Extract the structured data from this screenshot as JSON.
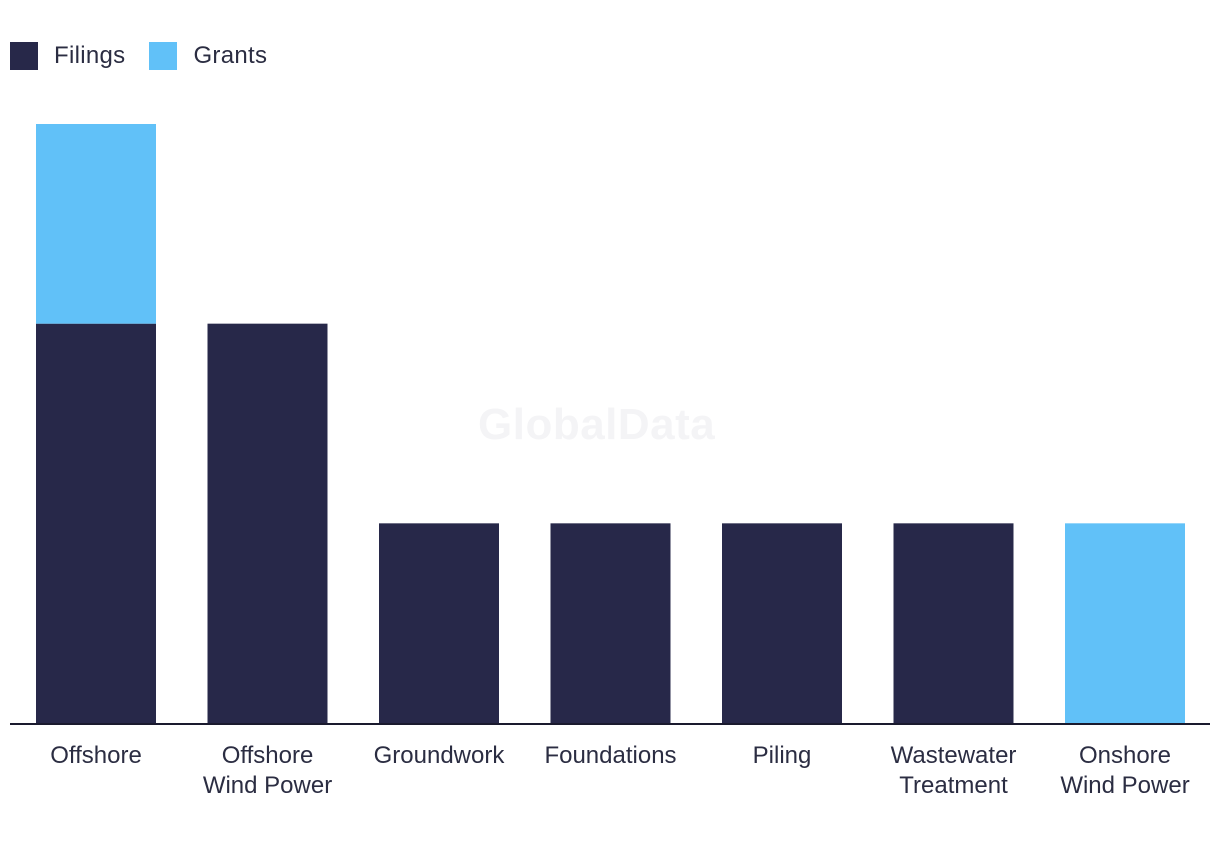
{
  "legend": {
    "items": [
      {
        "label": "Filings",
        "color": "#272849"
      },
      {
        "label": "Grants",
        "color": "#61c1f8"
      }
    ]
  },
  "watermark": "GlobalData",
  "chart_data": {
    "type": "bar",
    "stacked": true,
    "categories": [
      [
        "Offshore"
      ],
      [
        "Offshore",
        "Wind Power"
      ],
      [
        "Groundwork"
      ],
      [
        "Foundations"
      ],
      [
        "Piling"
      ],
      [
        "Wastewater",
        "Treatment"
      ],
      [
        "Onshore",
        "Wind Power"
      ]
    ],
    "series": [
      {
        "name": "Filings",
        "color": "#272849",
        "values": [
          2,
          2,
          1,
          1,
          1,
          1,
          0
        ]
      },
      {
        "name": "Grants",
        "color": "#61c1f8",
        "values": [
          1,
          0,
          0,
          0,
          0,
          0,
          1
        ]
      }
    ],
    "ylim": [
      0,
      3
    ],
    "grid": false,
    "legend_position": "top-left"
  }
}
